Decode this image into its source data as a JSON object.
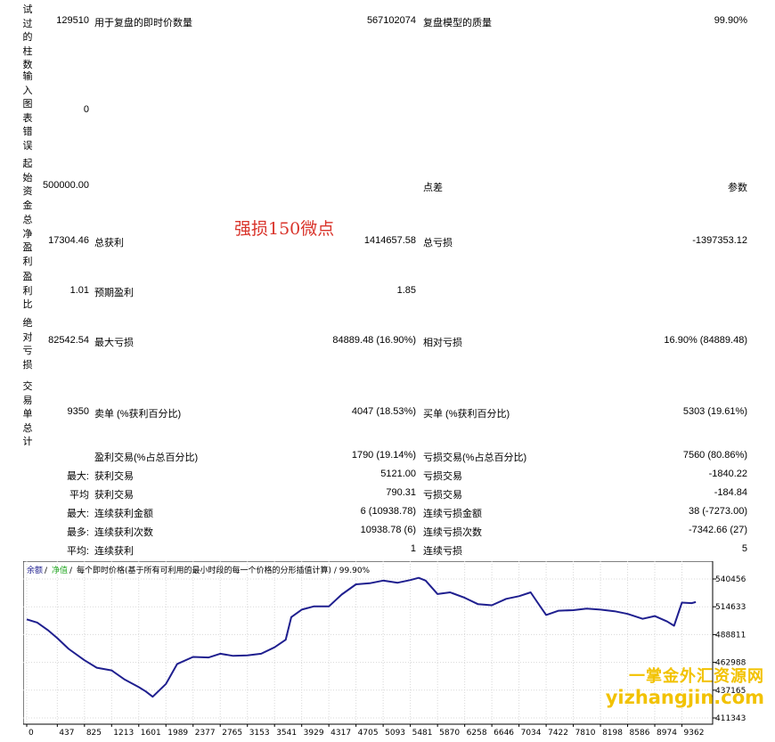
{
  "left_labels": [
    "试过的柱数",
    "输入图表错误",
    "起始资金",
    "总净盈利",
    "盈利比",
    "绝对亏损",
    "交易单总计"
  ],
  "rows": {
    "bars": {
      "v1": "129510",
      "l2": "用于复盘的即时价数量",
      "v2": "567102074",
      "l3": "复盘模型的质量",
      "v3": "99.90%"
    },
    "errors": {
      "v1": "0"
    },
    "deposit": {
      "v1": "500000.00",
      "l3": "点差",
      "v3": "参数"
    },
    "net_profit": {
      "v1": "17304.46",
      "l2": "总获利",
      "v2": "1414657.58",
      "l3": "总亏损",
      "v3": "-1397353.12"
    },
    "profit_factor": {
      "v1": "1.01",
      "l2": "预期盈利",
      "v2": "1.85"
    },
    "abs_drawdown": {
      "v1": "82542.54",
      "l2": "最大亏损",
      "v2": "84889.48 (16.90%)",
      "l3": "相对亏损",
      "v3": "16.90% (84889.48)"
    },
    "total_trades": {
      "v1": "9350",
      "l2": "卖单 (%获利百分比)",
      "v2": "4047 (18.53%)",
      "l3": "买单 (%获利百分比)",
      "v3": "5303 (19.61%)"
    },
    "win_loss": {
      "l2": "盈利交易(%占总百分比)",
      "v2": "1790 (19.14%)",
      "l3": "亏损交易(%占总百分比)",
      "v3": "7560 (80.86%)"
    },
    "largest": {
      "l1": "最大:",
      "l2": "获利交易",
      "v2": "5121.00",
      "l3": "亏损交易",
      "v3": "-1840.22"
    },
    "average": {
      "l1": "平均",
      "l2": "获利交易",
      "v2": "790.31",
      "l3": "亏损交易",
      "v3": "-184.84"
    },
    "max_consec": {
      "l1": "最大:",
      "l2": "连续获利金额",
      "v2": "6 (10938.78)",
      "l3": "连续亏损金额",
      "v3": "38 (-7273.00)"
    },
    "max_consec2": {
      "l1": "最多:",
      "l2": "连续获利次数",
      "v2": "10938.78 (6)",
      "l3": "连续亏损次数",
      "v3": "-7342.66 (27)"
    },
    "avg_consec": {
      "l1": "平均:",
      "l2": "连续获利",
      "v2": "1",
      "l3": "连续亏损",
      "v3": "5"
    }
  },
  "annotation": "强损150微点",
  "chart_header": {
    "balance": "余额",
    "sep1": " / ",
    "equity": "净值",
    "sep2": " / ",
    "desc": "每个即时价格(基于所有可利用的最小时段的每一个价格的分形插值计算) / 99.90%"
  },
  "watermark": {
    "line1": "一掌金外汇资源网",
    "line2": "yizhangjin.com"
  },
  "colors": {
    "balance_line": "#1f1f8f",
    "equity_label": "#27a827",
    "watermark": "#f2c200",
    "annotation": "#d9342b"
  },
  "chart_data": {
    "type": "line",
    "title": "",
    "x_ticks": [
      "0",
      "437",
      "825",
      "1213",
      "1601",
      "1989",
      "2377",
      "2765",
      "3153",
      "3541",
      "3929",
      "4317",
      "4705",
      "5093",
      "5481",
      "5870",
      "6258",
      "6646",
      "7034",
      "7422",
      "7810",
      "8198",
      "8586",
      "8974",
      "9362"
    ],
    "y_ticks": [
      "540456",
      "514633",
      "488811",
      "462988",
      "437165",
      "411343"
    ],
    "ylim": [
      411343,
      540456
    ],
    "xlim": [
      0,
      9750
    ],
    "series": [
      {
        "name": "",
        "x": [
          0,
          150,
          300,
          437,
          600,
          825,
          1000,
          1213,
          1400,
          1601,
          1700,
          1800,
          1989,
          2150,
          2377,
          2600,
          2765,
          2950,
          3153,
          3350,
          3541,
          3700,
          3780,
          3929,
          4100,
          4317,
          4500,
          4705,
          4900,
          5093,
          5300,
          5481,
          5600,
          5700,
          5870,
          6050,
          6258,
          6450,
          6646,
          6850,
          7034,
          7200,
          7300,
          7422,
          7600,
          7810,
          8000,
          8198,
          8400,
          8586,
          8800,
          8974,
          9150,
          9250,
          9362,
          9500,
          9560
        ],
        "values": [
          503000,
          500000,
          493000,
          485500,
          475500,
          465000,
          458000,
          455500,
          447000,
          440000,
          436000,
          431000,
          443000,
          461500,
          468000,
          467500,
          471000,
          469000,
          469500,
          471000,
          477000,
          484000,
          505000,
          512000,
          515000,
          515000,
          526000,
          535500,
          536500,
          539000,
          537000,
          539500,
          541500,
          539000,
          526500,
          528000,
          523000,
          517000,
          516000,
          522000,
          524500,
          528000,
          518500,
          507000,
          511000,
          511500,
          513000,
          512000,
          510500,
          508000,
          503500,
          506000,
          501000,
          497000,
          518500,
          518000,
          519000
        ]
      }
    ]
  }
}
